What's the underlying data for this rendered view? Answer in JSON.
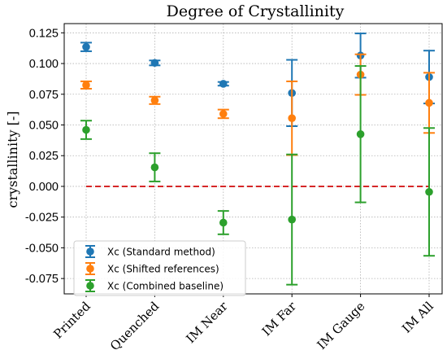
{
  "chart_data": {
    "type": "scatter",
    "title": "Degree of Crystallinity",
    "xlabel": "",
    "ylabel": "crystallinity [-]",
    "categories": [
      "Printed",
      "Quenched",
      "IM Near",
      "IM Far",
      "IM Gauge",
      "IM All"
    ],
    "ylim": [
      -0.0875,
      0.1325
    ],
    "yticks": [
      "0.125",
      "0.100",
      "0.075",
      "0.050",
      "0.025",
      "0.000",
      "-0.025",
      "-0.050",
      "-0.075"
    ],
    "ytick_values": [
      0.125,
      0.1,
      0.075,
      0.05,
      0.025,
      0.0,
      -0.025,
      -0.05,
      -0.075
    ],
    "grid": true,
    "legend_position": "lower-left",
    "reference_line": {
      "y": 0.0,
      "color": "#d62728",
      "style": "dashed"
    },
    "series": [
      {
        "name": "Xc (Standard method)",
        "color": "#1f77b4",
        "values": [
          0.1135,
          0.1005,
          0.0835,
          0.076,
          0.1065,
          0.089
        ],
        "errors": [
          0.0035,
          0.002,
          0.0015,
          0.027,
          0.018,
          0.0215
        ]
      },
      {
        "name": "Xc (Shifted references)",
        "color": "#ff7f0e",
        "values": [
          0.0825,
          0.07,
          0.059,
          0.0555,
          0.091,
          0.068
        ],
        "errors": [
          0.003,
          0.003,
          0.0035,
          0.03,
          0.0165,
          0.0245
        ]
      },
      {
        "name": "Xc (Combined baseline)",
        "color": "#2ca02c",
        "values": [
          0.046,
          0.0155,
          -0.0295,
          -0.027,
          0.0425,
          -0.0045
        ],
        "errors": [
          0.0075,
          0.0115,
          0.0095,
          0.053,
          0.0555,
          0.052
        ]
      }
    ]
  }
}
